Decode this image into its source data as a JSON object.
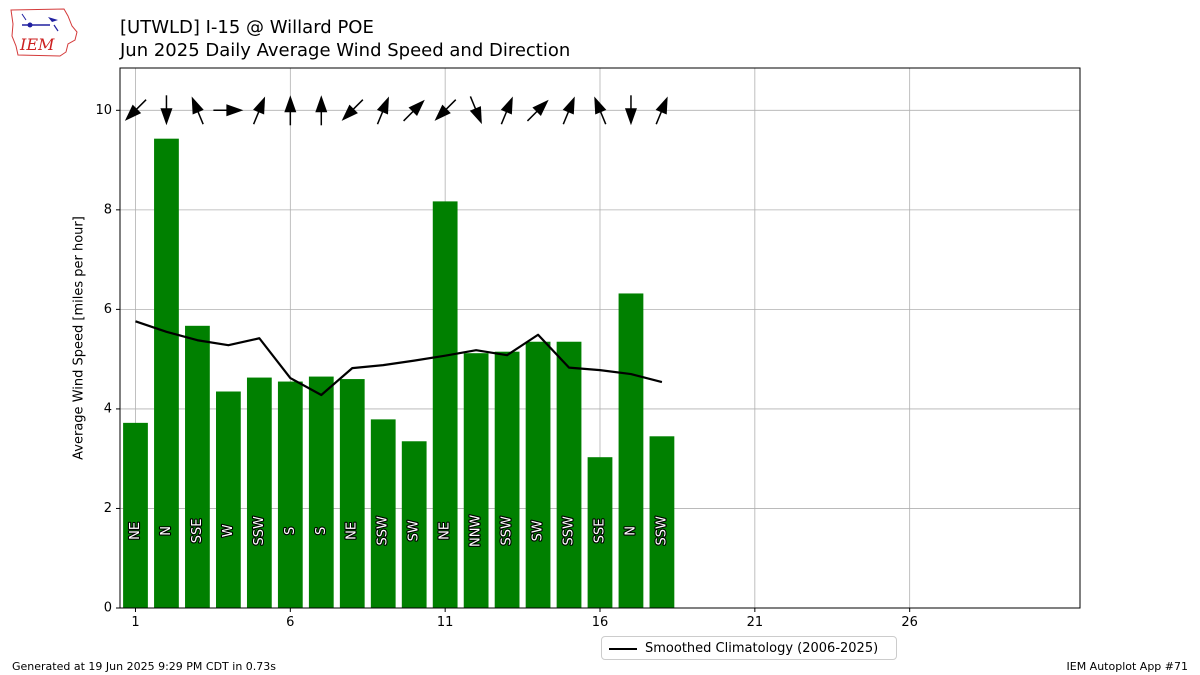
{
  "title_line1": "[UTWLD] I-15 @ Willard POE",
  "title_line2": "Jun 2025 Daily Average Wind Speed and Direction",
  "logo_text": "IEM",
  "footer_left": "Generated at 19 Jun 2025 9:29 PM CDT in 0.73s",
  "footer_right": "IEM Autoplot App #71",
  "legend_label": "Smoothed Climatology (2006-2025)",
  "colors": {
    "bar": "#008000",
    "line": "#000000",
    "grid": "#b0b0b0"
  },
  "chart_data": {
    "type": "bar",
    "xlabel": "",
    "ylabel": "Average Wind Speed [miles per hour]",
    "xlim": [
      0.5,
      31.5
    ],
    "ylim": [
      0,
      10.85
    ],
    "xticks": [
      1,
      6,
      11,
      16,
      21,
      26
    ],
    "yticks": [
      0,
      2,
      4,
      6,
      8,
      10
    ],
    "grid": true,
    "legend_position": "bottom-center",
    "days": [
      1,
      2,
      3,
      4,
      5,
      6,
      7,
      8,
      9,
      10,
      11,
      12,
      13,
      14,
      15,
      16,
      17,
      18
    ],
    "values": [
      3.72,
      9.43,
      5.67,
      4.35,
      4.63,
      4.55,
      4.65,
      4.6,
      3.79,
      3.35,
      8.17,
      5.12,
      5.15,
      5.35,
      5.35,
      3.03,
      6.32,
      3.45
    ],
    "direction_labels": [
      "NE",
      "N",
      "SSE",
      "W",
      "SSW",
      "S",
      "S",
      "NE",
      "SSW",
      "SW",
      "NE",
      "NNW",
      "SSW",
      "SW",
      "SSW",
      "SSE",
      "N",
      "SSW"
    ],
    "arrow_directions_deg": [
      45,
      0,
      157.5,
      270,
      202.5,
      180,
      180,
      45,
      202.5,
      225,
      45,
      337.5,
      202.5,
      225,
      202.5,
      157.5,
      0,
      202.5
    ],
    "climatology": {
      "name": "Smoothed Climatology (2006-2025)",
      "x": [
        1,
        2,
        3,
        4,
        5,
        6,
        7,
        8,
        9,
        10,
        11,
        12,
        13,
        14,
        15,
        16,
        17,
        18
      ],
      "values": [
        5.76,
        5.55,
        5.38,
        5.28,
        5.42,
        4.62,
        4.28,
        4.82,
        4.88,
        4.97,
        5.07,
        5.18,
        5.08,
        5.49,
        4.83,
        4.78,
        4.7,
        4.54
      ]
    }
  }
}
